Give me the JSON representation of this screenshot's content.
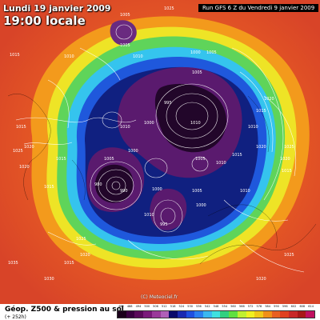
{
  "header": {
    "date_text": "Lundi 19 janvier 2009",
    "time_text": "19:00 locale",
    "run_text": "Run GFS 6 Z du Vendredi 9 janvier 2009"
  },
  "footer": {
    "title": "Géop. Z500 & pression au sol",
    "subtitle": "(+ 252h)"
  },
  "watermark": "(C) Meteociel.fr",
  "legend": {
    "labels": [
      "482",
      "488",
      "494",
      "500",
      "506",
      "512",
      "518",
      "524",
      "530",
      "536",
      "542",
      "548",
      "554",
      "560",
      "566",
      "572",
      "578",
      "584",
      "590",
      "596",
      "602",
      "608",
      "614"
    ],
    "colors": [
      "#1a001a",
      "#3a0040",
      "#5a0a5a",
      "#7a1a7a",
      "#9a3a9a",
      "#b060b8",
      "#0a0a6a",
      "#1a2ab0",
      "#1f50e0",
      "#2a7ff0",
      "#3ab8f0",
      "#40e0e0",
      "#30d080",
      "#60e040",
      "#c0f030",
      "#f0f020",
      "#f0c818",
      "#f09018",
      "#e86020",
      "#e04020",
      "#c82828",
      "#a81818",
      "#c01060"
    ]
  },
  "isobar_labels": [
    "1005",
    "1025",
    "1015",
    "1010",
    "1005",
    "1000",
    "1005",
    "1010",
    "1005",
    "995",
    "1000",
    "1010",
    "1005",
    "1010",
    "1015",
    "1020",
    "1025",
    "1020",
    "1015",
    "1010",
    "1000",
    "995",
    "990",
    "980",
    "1015",
    "1020",
    "1025",
    "1020",
    "1015",
    "1015",
    "1010",
    "1010",
    "1005",
    "1005",
    "1000",
    "1000",
    "1025",
    "1020",
    "1015",
    "1035",
    "1030",
    "1020",
    "1015",
    "1010",
    "1025",
    "1020"
  ],
  "map_colors": {
    "ocean_far": "#e25a2e",
    "ring_orange": "#f09018",
    "ring_yellow": "#f0e020",
    "ring_green": "#50d060",
    "ring_cyan": "#3ac8f0",
    "ring_blue": "#1f5ae0",
    "ring_navy": "#0f1a80",
    "core_purple": "#5a1a6a",
    "core_dark": "#2a0a30"
  }
}
